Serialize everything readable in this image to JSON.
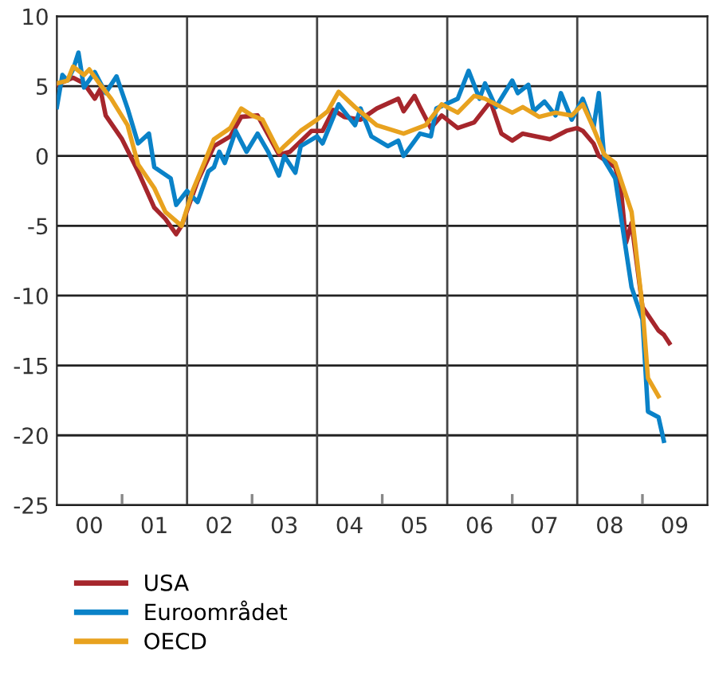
{
  "chart_data": {
    "type": "line",
    "xlim": [
      "2000-01",
      "2010-01"
    ],
    "ylim": [
      -25,
      10
    ],
    "yticks": [
      -25,
      -20,
      -15,
      -10,
      -5,
      0,
      5,
      10
    ],
    "xticks": [
      {
        "value": "2000-07",
        "label": "00"
      },
      {
        "value": "2001-07",
        "label": "01"
      },
      {
        "value": "2002-07",
        "label": "02"
      },
      {
        "value": "2003-07",
        "label": "03"
      },
      {
        "value": "2004-07",
        "label": "04"
      },
      {
        "value": "2005-07",
        "label": "05"
      },
      {
        "value": "2006-07",
        "label": "06"
      },
      {
        "value": "2007-07",
        "label": "07"
      },
      {
        "value": "2008-07",
        "label": "08"
      },
      {
        "value": "2009-07",
        "label": "09"
      },
      {
        "value": "2001-01",
        "label": null
      },
      {
        "value": "2002-01",
        "label": null
      },
      {
        "value": "2003-01",
        "label": null
      },
      {
        "value": "2004-01",
        "label": null
      },
      {
        "value": "2005-01",
        "label": null
      },
      {
        "value": "2006-01",
        "label": null
      },
      {
        "value": "2007-01",
        "label": null
      },
      {
        "value": "2008-01",
        "label": null
      },
      {
        "value": "2009-01",
        "label": null
      }
    ],
    "grid": true,
    "legend": "bottom",
    "marker": "none",
    "line_style": "solid",
    "series": [
      {
        "name": "USA",
        "color": "#a6262c",
        "x": [
          "2000-01",
          "2000-04",
          "2000-06",
          "2000-08",
          "2000-09",
          "2000-10",
          "2001-01",
          "2001-04",
          "2001-07",
          "2001-09",
          "2001-11",
          "2001-12",
          "2002-03",
          "2002-06",
          "2002-09",
          "2002-11",
          "2003-02",
          "2003-06",
          "2003-08",
          "2003-12",
          "2004-02",
          "2004-04",
          "2004-06",
          "2004-09",
          "2004-12",
          "2005-04",
          "2005-05",
          "2005-07",
          "2005-08",
          "2005-10",
          "2005-12",
          "2006-03",
          "2006-06",
          "2006-09",
          "2006-11",
          "2007-01",
          "2007-03",
          "2007-08",
          "2007-11",
          "2008-01",
          "2008-02",
          "2008-04",
          "2008-05",
          "2008-08",
          "2008-09",
          "2008-10",
          "2008-11",
          "2009-01",
          "2009-04",
          "2009-05",
          "2009-06"
        ],
        "values": [
          5.1,
          5.6,
          5.2,
          4.1,
          4.8,
          2.9,
          1.2,
          -1.1,
          -3.7,
          -4.5,
          -5.6,
          -5.0,
          -1.8,
          0.7,
          1.4,
          2.8,
          2.9,
          0.1,
          0.3,
          1.8,
          1.8,
          3.3,
          2.8,
          2.6,
          3.4,
          4.1,
          3.2,
          4.3,
          3.5,
          2.0,
          2.9,
          2.0,
          2.4,
          3.9,
          1.6,
          1.1,
          1.6,
          1.2,
          1.8,
          2.0,
          1.8,
          0.9,
          0.0,
          -0.8,
          -2.2,
          -6.2,
          -4.8,
          -10.8,
          -12.5,
          -12.8,
          -13.4
        ]
      },
      {
        "name": "Euroområdet",
        "color": "#0a82c8",
        "x": [
          "2000-01",
          "2000-02",
          "2000-03",
          "2000-04",
          "2000-05",
          "2000-06",
          "2000-08",
          "2000-10",
          "2000-12",
          "2001-02",
          "2001-04",
          "2001-06",
          "2001-07",
          "2001-10",
          "2001-11",
          "2002-01",
          "2002-03",
          "2002-05",
          "2002-06",
          "2002-07",
          "2002-08",
          "2002-10",
          "2002-12",
          "2003-02",
          "2003-04",
          "2003-06",
          "2003-07",
          "2003-09",
          "2003-10",
          "2004-01",
          "2004-02",
          "2004-05",
          "2004-08",
          "2004-09",
          "2004-11",
          "2005-02",
          "2005-04",
          "2005-05",
          "2005-08",
          "2005-10",
          "2005-11",
          "2006-03",
          "2006-05",
          "2006-07",
          "2006-08",
          "2006-10",
          "2007-01",
          "2007-02",
          "2007-04",
          "2007-05",
          "2007-07",
          "2007-09",
          "2007-10",
          "2007-12",
          "2008-02",
          "2008-04",
          "2008-05",
          "2008-06",
          "2008-08",
          "2008-11",
          "2009-01",
          "2009-02",
          "2009-04",
          "2009-05"
        ],
        "values": [
          3.5,
          5.8,
          5.4,
          6.2,
          7.4,
          4.9,
          6.0,
          4.5,
          5.7,
          3.4,
          0.9,
          1.6,
          -0.8,
          -1.6,
          -3.5,
          -2.5,
          -3.3,
          -1.1,
          -0.8,
          0.3,
          -0.5,
          1.8,
          0.3,
          1.6,
          0.3,
          -1.4,
          0.0,
          -1.2,
          0.7,
          1.4,
          0.9,
          3.7,
          2.2,
          3.4,
          1.4,
          0.7,
          1.1,
          0.0,
          1.6,
          1.4,
          3.4,
          4.1,
          6.1,
          4.1,
          5.2,
          3.5,
          5.4,
          4.5,
          5.1,
          3.2,
          3.9,
          2.9,
          4.5,
          2.6,
          4.1,
          2.0,
          4.5,
          -0.3,
          -1.6,
          -9.4,
          -11.7,
          -18.3,
          -18.7,
          -20.4
        ]
      },
      {
        "name": "OECD",
        "color": "#e8a21f",
        "x": [
          "2000-01",
          "2000-03",
          "2000-04",
          "2000-06",
          "2000-07",
          "2000-09",
          "2000-11",
          "2001-02",
          "2001-04",
          "2001-07",
          "2001-09",
          "2001-12",
          "2002-02",
          "2002-06",
          "2002-09",
          "2002-11",
          "2003-01",
          "2003-03",
          "2003-06",
          "2003-07",
          "2003-10",
          "2004-01",
          "2004-03",
          "2004-05",
          "2004-08",
          "2004-12",
          "2005-05",
          "2005-09",
          "2005-12",
          "2006-03",
          "2006-06",
          "2006-08",
          "2006-10",
          "2007-01",
          "2007-03",
          "2007-06",
          "2007-09",
          "2007-12",
          "2008-02",
          "2008-04",
          "2008-06",
          "2008-08",
          "2008-11",
          "2009-01",
          "2009-02",
          "2009-04"
        ],
        "values": [
          5.2,
          5.4,
          6.4,
          5.8,
          6.2,
          5.1,
          4.1,
          2.2,
          -0.6,
          -2.3,
          -4.0,
          -5.0,
          -2.5,
          1.2,
          2.0,
          3.4,
          2.9,
          2.6,
          0.3,
          0.7,
          1.8,
          2.6,
          3.2,
          4.6,
          3.5,
          2.2,
          1.6,
          2.2,
          3.7,
          3.1,
          4.3,
          4.1,
          3.7,
          3.1,
          3.5,
          2.8,
          3.1,
          2.9,
          3.7,
          2.0,
          0.1,
          -0.5,
          -4.0,
          -10.8,
          -15.9,
          -17.2
        ]
      }
    ]
  }
}
